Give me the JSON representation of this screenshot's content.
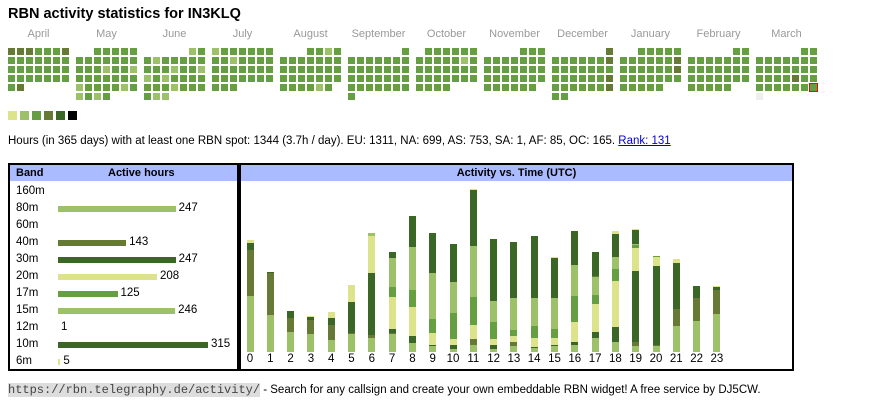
{
  "title": "RBN activity statistics for IN3KLQ",
  "colors": {
    "l1": "#dce38a",
    "l2": "#9dc168",
    "l3": "#669f42",
    "l4": "#667a35",
    "l5": "#3a6626",
    "l6": "#000000",
    "none": "#eeeeee",
    "today": "#ff0000",
    "header": "#aabbff"
  },
  "calendar": {
    "today": {
      "month": 11,
      "day": 30
    },
    "months": [
      {
        "name": "April",
        "start": 0,
        "levels": "444333433333333333333333333334"
      },
      {
        "name": "May",
        "start": 2,
        "levels": "3333333333333332332333333323333232323"
      },
      {
        "name": "June",
        "start": 5,
        "levels": "233233333333233223233333332333322"
      },
      {
        "name": "July",
        "start": 0,
        "levels": "2333333332333333333333333333333"
      },
      {
        "name": "August",
        "start": 3,
        "levels": "3323333333333333333333333333323"
      },
      {
        "name": "September",
        "start": 6,
        "levels": "333333333333333333333333333333"
      },
      {
        "name": "October",
        "start": 1,
        "levels": "3333333333323333333333333333333"
      },
      {
        "name": "November",
        "start": 4,
        "levels": "333333333333333333333333333333"
      },
      {
        "name": "December",
        "start": 6,
        "levels": "4333333433333333333334333333433"
      },
      {
        "name": "January",
        "start": 2,
        "levels": "3333333333343333334333333333333"
      },
      {
        "name": "February",
        "start": 5,
        "levels": "3333333333333333333333333333"
      },
      {
        "name": "March",
        "start": 5,
        "levels": "3333333333333333333343333333330"
      }
    ]
  },
  "stats": {
    "text": "Hours (in 365 days) with at least one RBN spot: 1344 (3.7h / day). EU: 1311, NA: 699, AS: 753, SA: 1, AF: 85, OC: 165.",
    "rank": "Rank: 131"
  },
  "bands": {
    "header_band": "Band",
    "header_hours": "Active hours",
    "rows": [
      {
        "band": "160m",
        "hours": null,
        "color": ""
      },
      {
        "band": "80m",
        "hours": "247",
        "color": "#9dc168"
      },
      {
        "band": "60m",
        "hours": null,
        "color": ""
      },
      {
        "band": "40m",
        "hours": "143",
        "color": "#667a35"
      },
      {
        "band": "30m",
        "hours": "247",
        "color": "#3a6626"
      },
      {
        "band": "20m",
        "hours": "208",
        "color": "#dce38a"
      },
      {
        "band": "17m",
        "hours": "125",
        "color": "#669f42"
      },
      {
        "band": "15m",
        "hours": "246",
        "color": "#9dc168"
      },
      {
        "band": "12m",
        "hours": "1",
        "color": ""
      },
      {
        "band": "10m",
        "hours": "315",
        "color": "#3a6626"
      },
      {
        "band": "6m",
        "hours": "5",
        "color": "#dce38a"
      }
    ]
  },
  "chart_data": {
    "type": "bar",
    "title": "Activity vs. Time (UTC)",
    "stacked": true,
    "categories": [
      "0",
      "1",
      "2",
      "3",
      "4",
      "5",
      "6",
      "7",
      "8",
      "9",
      "10",
      "11",
      "12",
      "13",
      "14",
      "15",
      "16",
      "17",
      "18",
      "19",
      "20",
      "21",
      "22",
      "23"
    ],
    "ylim": [
      0,
      170
    ],
    "segments": [
      [
        [
          "#9dc168",
          56
        ],
        [
          "#667a35",
          46
        ],
        [
          "#3a6626",
          7
        ],
        [
          "#dce38a",
          3
        ]
      ],
      [
        [
          "#9dc168",
          37
        ],
        [
          "#667a35",
          42
        ],
        [
          "#3a6626",
          1
        ]
      ],
      [
        [
          "#9dc168",
          20
        ],
        [
          "#667a35",
          14
        ],
        [
          "#3a6626",
          7
        ]
      ],
      [
        [
          "#9dc168",
          18
        ],
        [
          "#667a35",
          14
        ],
        [
          "#3a6626",
          3
        ],
        [
          "#dce38a",
          1
        ]
      ],
      [
        [
          "#9dc168",
          12
        ],
        [
          "#667a35",
          15
        ],
        [
          "#3a6626",
          7
        ],
        [
          "#dce38a",
          6
        ]
      ],
      [
        [
          "#9dc168",
          18
        ],
        [
          "#667a35",
          1
        ],
        [
          "#3a6626",
          31
        ],
        [
          "#dce38a",
          17
        ]
      ],
      [
        [
          "#9dc168",
          14
        ],
        [
          "#667a35",
          3
        ],
        [
          "#3a6626",
          62
        ],
        [
          "#dce38a",
          37
        ],
        [
          "#9dc168",
          3
        ]
      ],
      [
        [
          "#9dc168",
          18
        ],
        [
          "#667a35",
          1
        ],
        [
          "#3a6626",
          4
        ],
        [
          "#dce38a",
          32
        ],
        [
          "#669f42",
          10
        ],
        [
          "#9dc168",
          29
        ],
        [
          "#3a6626",
          6
        ]
      ],
      [
        [
          "#9dc168",
          9
        ],
        [
          "#3a6626",
          7
        ],
        [
          "#dce38a",
          29
        ],
        [
          "#669f42",
          17
        ],
        [
          "#9dc168",
          43
        ],
        [
          "#3a6626",
          31
        ]
      ],
      [
        [
          "#9dc168",
          6
        ],
        [
          "#3a6626",
          1
        ],
        [
          "#dce38a",
          12
        ],
        [
          "#669f42",
          14
        ],
        [
          "#9dc168",
          46
        ],
        [
          "#3a6626",
          40
        ]
      ],
      [
        [
          "#9dc168",
          3
        ],
        [
          "#3a6626",
          4
        ],
        [
          "#dce38a",
          6
        ],
        [
          "#669f42",
          26
        ],
        [
          "#9dc168",
          31
        ],
        [
          "#3a6626",
          38
        ]
      ],
      [
        [
          "#9dc168",
          7
        ],
        [
          "#667a35",
          6
        ],
        [
          "#dce38a",
          14
        ],
        [
          "#669f42",
          28
        ],
        [
          "#9dc168",
          51
        ],
        [
          "#3a6626",
          56
        ],
        [
          "#dce38a",
          1
        ]
      ],
      [
        [
          "#9dc168",
          3
        ],
        [
          "#3a6626",
          4
        ],
        [
          "#dce38a",
          6
        ],
        [
          "#669f42",
          17
        ],
        [
          "#9dc168",
          21
        ],
        [
          "#3a6626",
          62
        ]
      ],
      [
        [
          "#9dc168",
          6
        ],
        [
          "#667a35",
          4
        ],
        [
          "#dce38a",
          6
        ],
        [
          "#669f42",
          6
        ],
        [
          "#9dc168",
          32
        ],
        [
          "#3a6626",
          56
        ]
      ],
      [
        [
          "#9dc168",
          4
        ],
        [
          "#3a6626",
          1
        ],
        [
          "#dce38a",
          9
        ],
        [
          "#669f42",
          12
        ],
        [
          "#9dc168",
          28
        ],
        [
          "#3a6626",
          62
        ]
      ],
      [
        [
          "#9dc168",
          6
        ],
        [
          "#3a6626",
          1
        ],
        [
          "#dce38a",
          7
        ],
        [
          "#669f42",
          9
        ],
        [
          "#9dc168",
          31
        ],
        [
          "#3a6626",
          40
        ],
        [
          "#dce38a",
          1
        ]
      ],
      [
        [
          "#9dc168",
          7
        ],
        [
          "#3a6626",
          3
        ],
        [
          "#dce38a",
          20
        ],
        [
          "#669f42",
          26
        ],
        [
          "#9dc168",
          31
        ],
        [
          "#3a6626",
          34
        ]
      ],
      [
        [
          "#9dc168",
          14
        ],
        [
          "#3a6626",
          6
        ],
        [
          "#dce38a",
          28
        ],
        [
          "#669f42",
          9
        ],
        [
          "#9dc168",
          18
        ],
        [
          "#667a35",
          1
        ],
        [
          "#3a6626",
          24
        ]
      ],
      [
        [
          "#9dc168",
          10
        ],
        [
          "#3a6626",
          15
        ],
        [
          "#dce38a",
          46
        ],
        [
          "#669f42",
          12
        ],
        [
          "#9dc168",
          12
        ],
        [
          "#3a6626",
          23
        ],
        [
          "#dce38a",
          3
        ]
      ],
      [
        [
          "#9dc168",
          6
        ],
        [
          "#667a35",
          4
        ],
        [
          "#3a6626",
          71
        ],
        [
          "#dce38a",
          23
        ],
        [
          "#669f42",
          3
        ],
        [
          "#9dc168",
          1
        ],
        [
          "#3a6626",
          14
        ],
        [
          "#dce38a",
          1
        ]
      ],
      [
        [
          "#9dc168",
          6
        ],
        [
          "#667a35",
          1
        ],
        [
          "#3a6626",
          79
        ],
        [
          "#dce38a",
          9
        ],
        [
          "#669f42",
          1
        ]
      ],
      [
        [
          "#9dc168",
          26
        ],
        [
          "#667a35",
          17
        ],
        [
          "#3a6626",
          46
        ],
        [
          "#dce38a",
          4
        ]
      ],
      [
        [
          "#9dc168",
          31
        ],
        [
          "#667a35",
          23
        ],
        [
          "#3a6626",
          12
        ]
      ],
      [
        [
          "#9dc168",
          38
        ],
        [
          "#667a35",
          24
        ],
        [
          "#3a6626",
          3
        ],
        [
          "#dce38a",
          1
        ]
      ]
    ]
  },
  "footer": {
    "url": "https://rbn.telegraphy.de/activity/",
    "text": " - Search for any callsign and create your own embeddable RBN widget! A free service by DJ5CW."
  }
}
